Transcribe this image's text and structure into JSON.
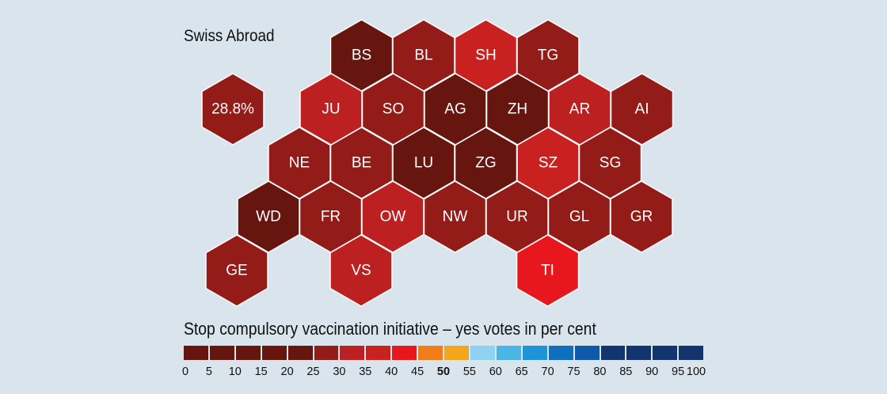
{
  "map": {
    "abroad_label": "Swiss Abroad",
    "cantons": [
      {
        "code": "BS",
        "color": "#66150f",
        "row": 0,
        "col": 1
      },
      {
        "code": "BL",
        "color": "#931c18",
        "row": 0,
        "col": 2
      },
      {
        "code": "SH",
        "color": "#c9211f",
        "row": 0,
        "col": 3
      },
      {
        "code": "TG",
        "color": "#931c18",
        "row": 0,
        "col": 4
      },
      {
        "code": "JU",
        "color": "#bd2020",
        "row": 1,
        "col": 0
      },
      {
        "code": "SO",
        "color": "#931c18",
        "row": 1,
        "col": 1
      },
      {
        "code": "AG",
        "color": "#66150f",
        "row": 1,
        "col": 2
      },
      {
        "code": "ZH",
        "color": "#66150f",
        "row": 1,
        "col": 3
      },
      {
        "code": "AR",
        "color": "#bd2020",
        "row": 1,
        "col": 4
      },
      {
        "code": "AI",
        "color": "#931c18",
        "row": 1,
        "col": 5
      },
      {
        "code": "NE",
        "color": "#931c18",
        "row": 2,
        "col": 0
      },
      {
        "code": "BE",
        "color": "#931c18",
        "row": 2,
        "col": 1
      },
      {
        "code": "LU",
        "color": "#66150f",
        "row": 2,
        "col": 2
      },
      {
        "code": "ZG",
        "color": "#66150f",
        "row": 2,
        "col": 3
      },
      {
        "code": "SZ",
        "color": "#c9211f",
        "row": 2,
        "col": 4
      },
      {
        "code": "SG",
        "color": "#931c18",
        "row": 2,
        "col": 5
      },
      {
        "code": "WD",
        "color": "#66150f",
        "row": 3,
        "col": 0
      },
      {
        "code": "FR",
        "color": "#931c18",
        "row": 3,
        "col": 1
      },
      {
        "code": "OW",
        "color": "#bd2020",
        "row": 3,
        "col": 2
      },
      {
        "code": "NW",
        "color": "#931c18",
        "row": 3,
        "col": 3
      },
      {
        "code": "UR",
        "color": "#931c18",
        "row": 3,
        "col": 4
      },
      {
        "code": "GL",
        "color": "#931c18",
        "row": 3,
        "col": 5
      },
      {
        "code": "GR",
        "color": "#931c18",
        "row": 3,
        "col": 6
      },
      {
        "code": "GE",
        "color": "#931c18",
        "row": 4,
        "col": 0
      },
      {
        "code": "VS",
        "color": "#bd2020",
        "row": 4,
        "col": 2
      },
      {
        "code": "TI",
        "color": "#e8171d",
        "row": 4,
        "col": 5
      }
    ],
    "abroad": {
      "value_label": "28.8%",
      "color": "#931c18"
    }
  },
  "legend": {
    "title": "Stop compulsory vaccination initiative – yes votes in per cent",
    "swatches": [
      "#66150f",
      "#66150f",
      "#66150f",
      "#66150f",
      "#66150f",
      "#931c18",
      "#bd2020",
      "#c9211f",
      "#e8171d",
      "#f07d1a",
      "#f4a51c",
      "#8fd1f0",
      "#4ab6e6",
      "#1e94d6",
      "#0f6fbf",
      "#0f5aa8",
      "#12356e",
      "#12356e",
      "#12356e",
      "#12356e"
    ],
    "ticks": [
      "0",
      "5",
      "10",
      "15",
      "20",
      "25",
      "30",
      "35",
      "40",
      "45",
      "50",
      "55",
      "60",
      "65",
      "70",
      "75",
      "80",
      "85",
      "90",
      "95",
      "100"
    ],
    "bold_tick": "50"
  }
}
